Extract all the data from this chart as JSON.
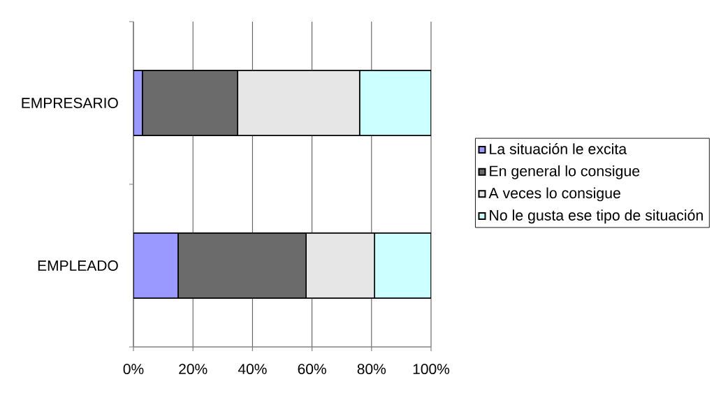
{
  "chart_data": {
    "type": "bar",
    "orientation": "horizontal",
    "stacked": true,
    "categories": [
      "EMPRESARIO",
      "EMPLEADO"
    ],
    "series": [
      {
        "name": "La situación le excita",
        "color": "#9999ff",
        "values": [
          3,
          15
        ]
      },
      {
        "name": "En general lo consigue",
        "color": "#6b6b6b",
        "values": [
          32,
          43
        ]
      },
      {
        "name": "A veces lo consigue",
        "color": "#e6e6e6",
        "values": [
          41,
          23
        ]
      },
      {
        "name": "No le gusta ese tipo de situación",
        "color": "#ccffff",
        "values": [
          24,
          19
        ]
      }
    ],
    "xlim": [
      0,
      100
    ],
    "xticks": [
      {
        "value": 0,
        "label": "0%"
      },
      {
        "value": 20,
        "label": "20%"
      },
      {
        "value": 40,
        "label": "40%"
      },
      {
        "value": 60,
        "label": "60%"
      },
      {
        "value": 80,
        "label": "80%"
      },
      {
        "value": 100,
        "label": "100%"
      }
    ],
    "grid": "x",
    "legend": "right"
  }
}
